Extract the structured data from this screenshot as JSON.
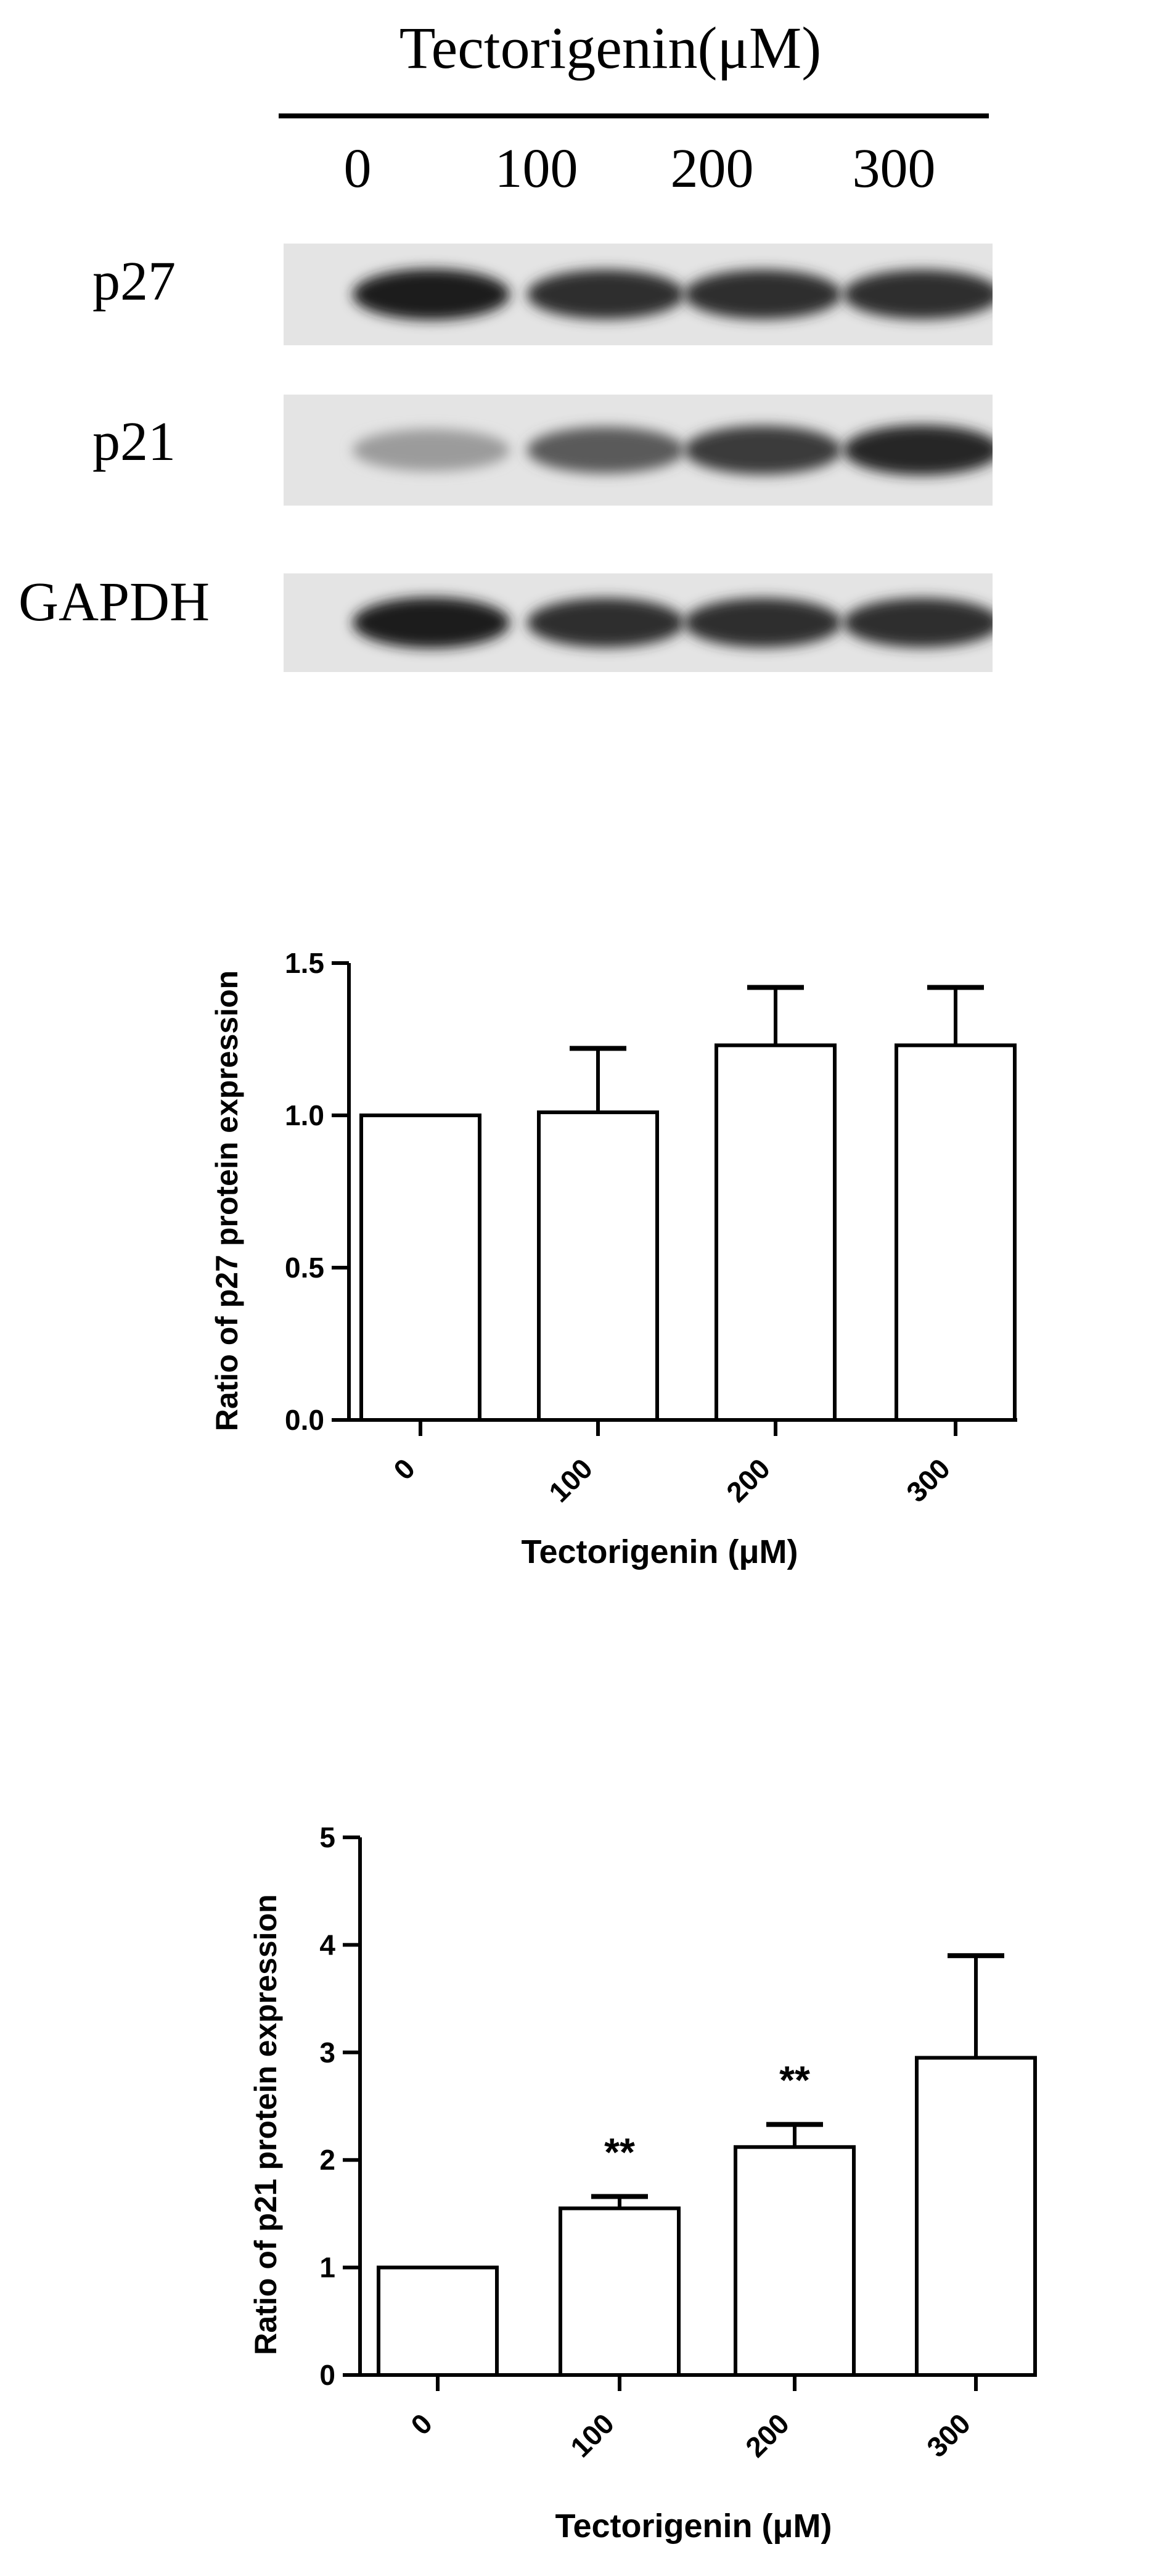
{
  "blot": {
    "title": "Tectorigenin(μM)",
    "lanes": [
      "0",
      "100",
      "200",
      "300"
    ],
    "proteins": [
      {
        "name": "p27",
        "intensities": [
          0.95,
          0.85,
          0.85,
          0.85
        ]
      },
      {
        "name": "p21",
        "intensities": [
          0.35,
          0.65,
          0.8,
          0.9
        ]
      },
      {
        "name": "GAPDH",
        "intensities": [
          0.95,
          0.85,
          0.85,
          0.85
        ]
      }
    ]
  },
  "chart_data": [
    {
      "type": "bar",
      "categories": [
        "0",
        "100",
        "200",
        "300"
      ],
      "values": [
        1.0,
        1.01,
        1.23,
        1.23
      ],
      "errors": [
        0,
        0.21,
        0.19,
        0.19
      ],
      "annotations": [
        "",
        "",
        "",
        ""
      ],
      "xlabel": "Tectorigenin (μM)",
      "ylabel": "Ratio of p27 protein expression",
      "ylim": [
        0,
        1.5
      ],
      "yticks": [
        "0.0",
        "0.5",
        "1.0",
        "1.5"
      ],
      "grid": false
    },
    {
      "type": "bar",
      "categories": [
        "0",
        "100",
        "200",
        "300"
      ],
      "values": [
        1.0,
        1.55,
        2.12,
        2.95
      ],
      "errors": [
        0,
        0.11,
        0.21,
        0.95
      ],
      "annotations": [
        "",
        "**",
        "**",
        ""
      ],
      "xlabel": "Tectorigenin (μM)",
      "ylabel": "Ratio of p21 protein expression",
      "ylim": [
        0,
        5
      ],
      "yticks": [
        "0",
        "1",
        "2",
        "3",
        "4",
        "5"
      ],
      "grid": false
    }
  ]
}
